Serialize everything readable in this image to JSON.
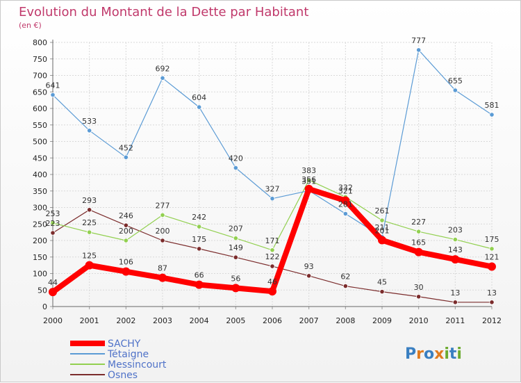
{
  "chart_data": {
    "type": "line",
    "title": "Evolution du Montant de la Dette par Habitant",
    "subtitle": "(en €)",
    "x": [
      "2000",
      "2001",
      "2002",
      "2003",
      "2004",
      "2005",
      "2006",
      "2007",
      "2008",
      "2009",
      "2010",
      "2011",
      "2012"
    ],
    "ylim": [
      0,
      800
    ],
    "yticks": [
      0,
      50,
      100,
      150,
      200,
      250,
      300,
      350,
      400,
      450,
      500,
      550,
      600,
      650,
      700,
      750,
      800
    ],
    "grid": true,
    "legend_position": "bottom-left",
    "series": [
      {
        "name": "SACHY",
        "color": "#ff0000",
        "values": [
          44,
          125,
          106,
          87,
          66,
          56,
          46,
          356,
          321,
          201,
          165,
          143,
          121
        ]
      },
      {
        "name": "Tétaigne",
        "color": "#5b9bd5",
        "values": [
          641,
          533,
          452,
          692,
          604,
          420,
          327,
          351,
          281,
          211,
          777,
          655,
          581
        ]
      },
      {
        "name": "Messincourt",
        "color": "#92d050",
        "values": [
          253,
          225,
          200,
          277,
          242,
          207,
          171,
          383,
          332,
          261,
          227,
          203,
          175
        ]
      },
      {
        "name": "Osnes",
        "color": "#7b2c2c",
        "values": [
          223,
          293,
          246,
          200,
          175,
          149,
          122,
          93,
          62,
          45,
          30,
          13,
          13
        ]
      }
    ]
  },
  "brand": {
    "text": "Proxiti"
  }
}
